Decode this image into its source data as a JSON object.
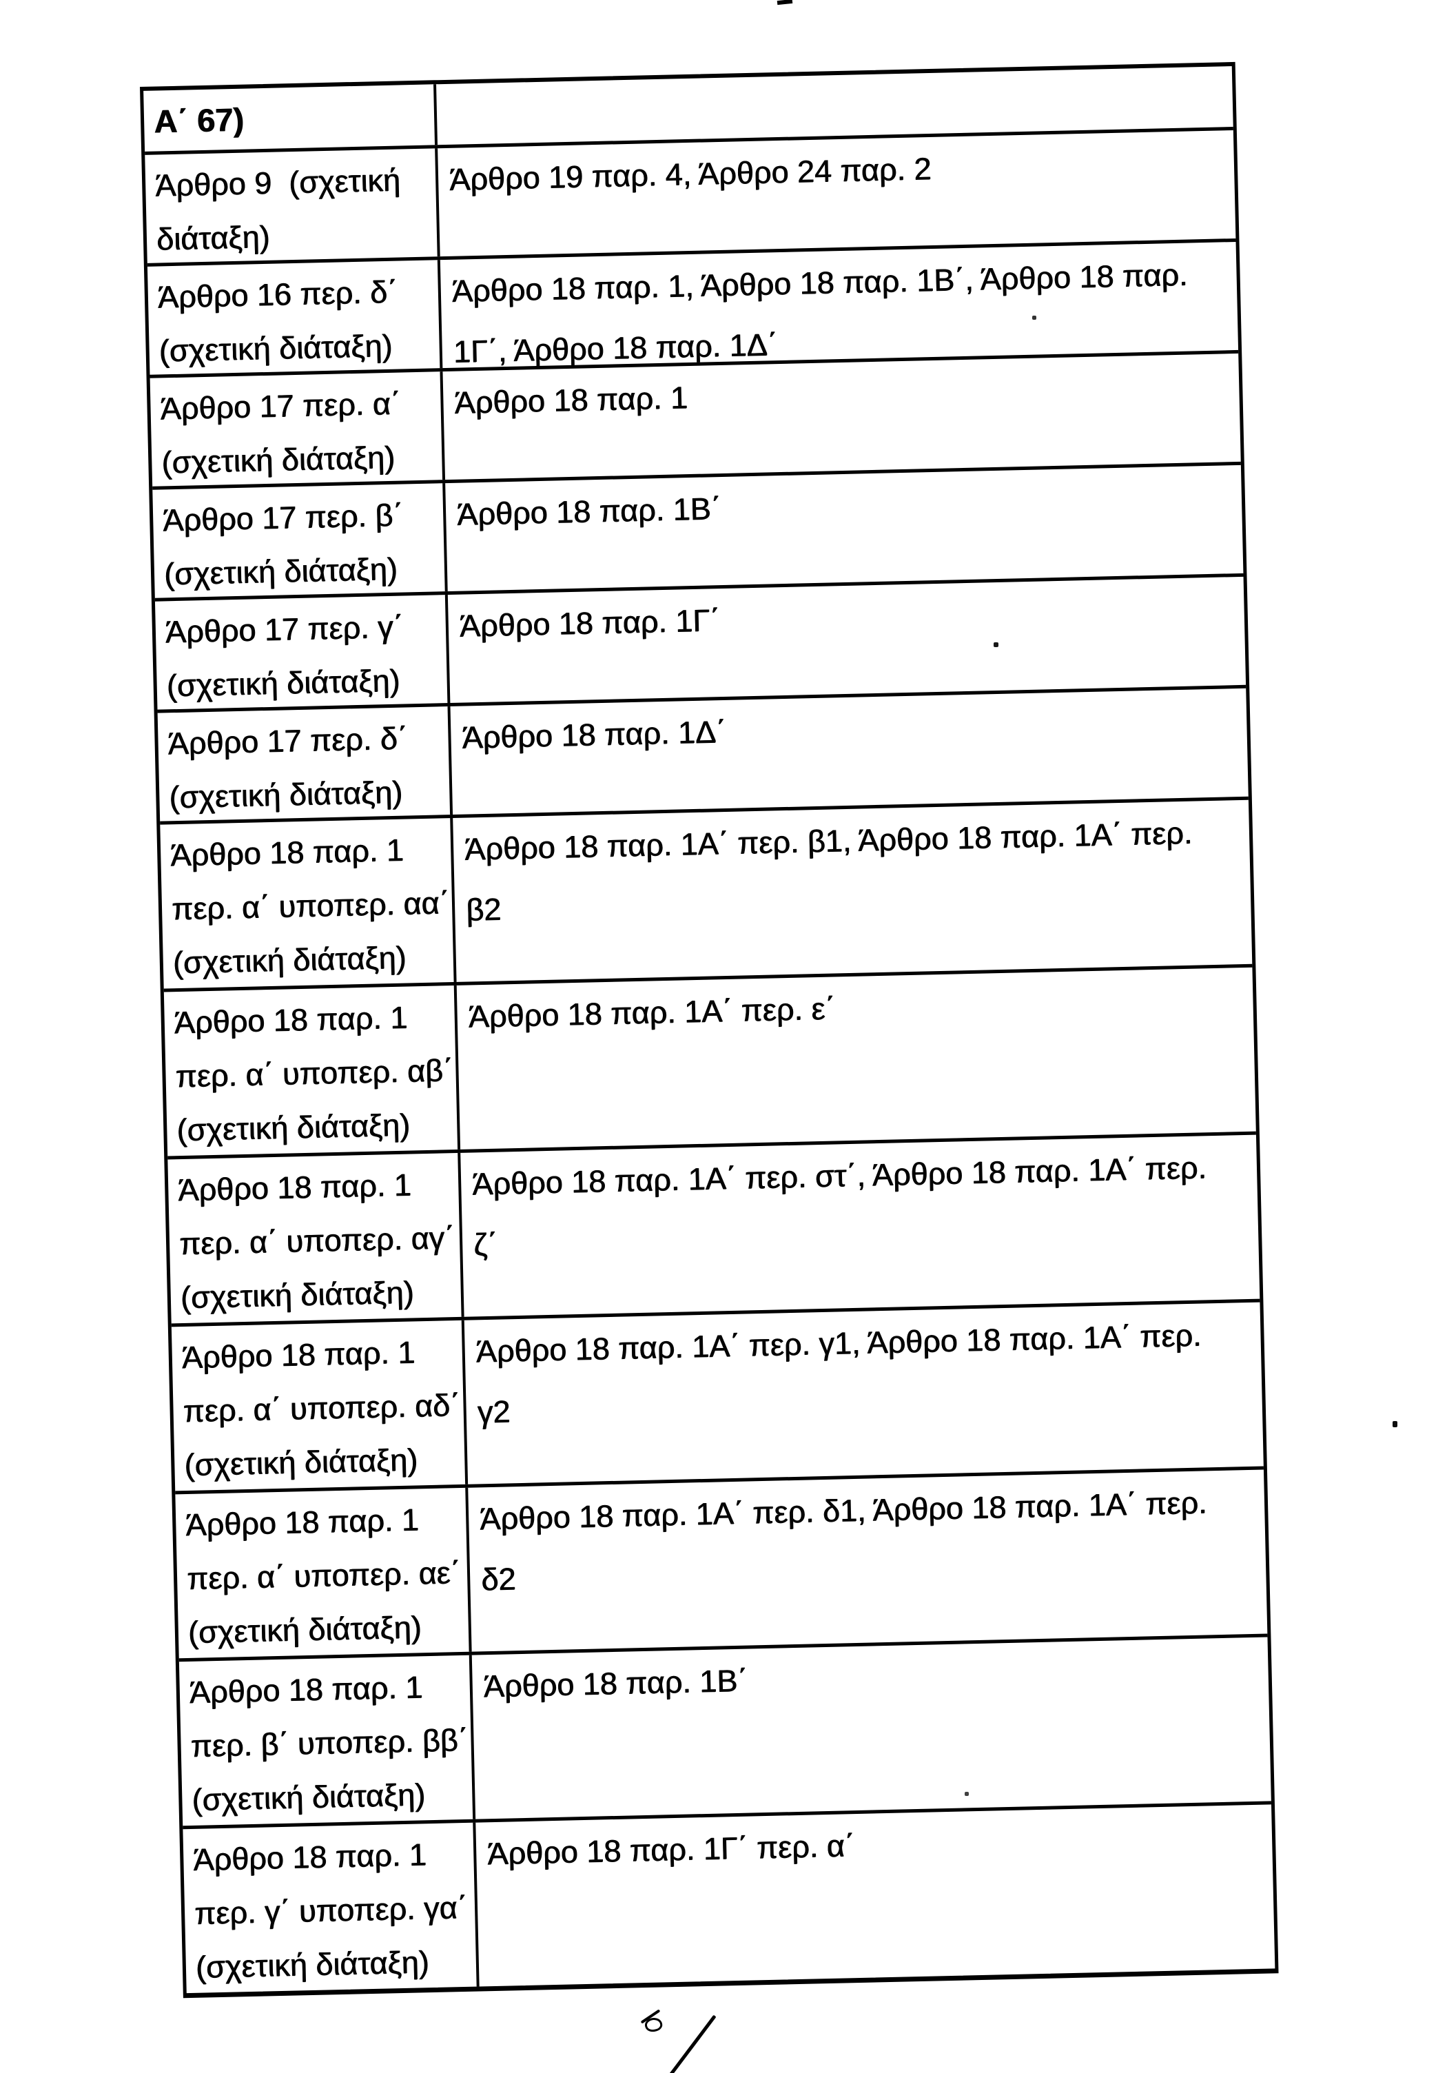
{
  "page": {
    "background": "#ffffff",
    "ink": "#000000",
    "language": "el"
  },
  "table": {
    "header": {
      "left": "Α΄ 67)",
      "right": ""
    },
    "rows": [
      {
        "left": [
          "Άρθρο 9  (σχετική",
          "διάταξη)"
        ],
        "right": [
          "Άρθρο 19 παρ. 4, Άρθρο 24 παρ. 2"
        ]
      },
      {
        "left": [
          "Άρθρο 16 περ. δ΄",
          "(σχετική διάταξη)"
        ],
        "right": [
          "Άρθρο 18 παρ. 1, Άρθρο 18 παρ. 1Β΄, Άρθρο 18 παρ.",
          "1Γ΄, Άρθρο 18 παρ. 1Δ΄"
        ]
      },
      {
        "left": [
          "Άρθρο 17 περ. α΄",
          "(σχετική διάταξη)"
        ],
        "right": [
          "Άρθρο 18 παρ. 1"
        ]
      },
      {
        "left": [
          "Άρθρο 17 περ. β΄",
          "(σχετική διάταξη)"
        ],
        "right": [
          "Άρθρο 18 παρ. 1Β΄"
        ]
      },
      {
        "left": [
          "Άρθρο 17 περ. γ΄",
          "(σχετική διάταξη)"
        ],
        "right": [
          "Άρθρο 18 παρ. 1Γ΄"
        ]
      },
      {
        "left": [
          "Άρθρο 17 περ. δ΄",
          "(σχετική διάταξη)"
        ],
        "right": [
          "Άρθρο 18 παρ. 1Δ΄"
        ]
      },
      {
        "left": [
          "Άρθρο 18 παρ. 1",
          "περ. α΄ υποπερ. αα΄",
          "(σχετική διάταξη)"
        ],
        "right": [
          "Άρθρο 18 παρ. 1Α΄ περ. β1, Άρθρο 18 παρ. 1Α΄ περ.",
          "β2"
        ]
      },
      {
        "left": [
          "Άρθρο 18 παρ. 1",
          "περ. α΄ υποπερ. αβ΄",
          "(σχετική διάταξη)"
        ],
        "right": [
          "Άρθρο 18 παρ. 1Α΄ περ. ε΄"
        ]
      },
      {
        "left": [
          "Άρθρο 18 παρ. 1",
          "περ. α΄ υποπερ. αγ΄",
          "(σχετική διάταξη)"
        ],
        "right": [
          "Άρθρο 18 παρ. 1Α΄ περ. στ΄, Άρθρο 18 παρ. 1Α΄ περ.",
          "ζ΄"
        ]
      },
      {
        "left": [
          "Άρθρο 18 παρ. 1",
          "περ. α΄ υποπερ. αδ΄",
          "(σχετική διάταξη)"
        ],
        "right": [
          "Άρθρο 18 παρ. 1Α΄ περ. γ1, Άρθρο 18 παρ. 1Α΄ περ.",
          "γ2"
        ]
      },
      {
        "left": [
          "Άρθρο 18 παρ. 1",
          "περ. α΄ υποπερ. αε΄",
          "(σχετική διάταξη)"
        ],
        "right": [
          "Άρθρο 18 παρ. 1Α΄ περ. δ1, Άρθρο 18 παρ. 1Α΄ περ.",
          "δ2"
        ]
      },
      {
        "left": [
          "Άρθρο 18 παρ. 1",
          "περ. β΄ υποπερ. ββ΄",
          "(σχετική διάταξη)"
        ],
        "right": [
          "Άρθρο 18 παρ. 1Β΄"
        ]
      },
      {
        "left": [
          "Άρθρο 18 παρ. 1",
          "περ. γ΄ υποπερ. γα΄",
          "(σχετική διάταξη)"
        ],
        "right": [
          "Άρθρο 18 παρ. 1Γ΄ περ. α΄"
        ]
      }
    ]
  }
}
